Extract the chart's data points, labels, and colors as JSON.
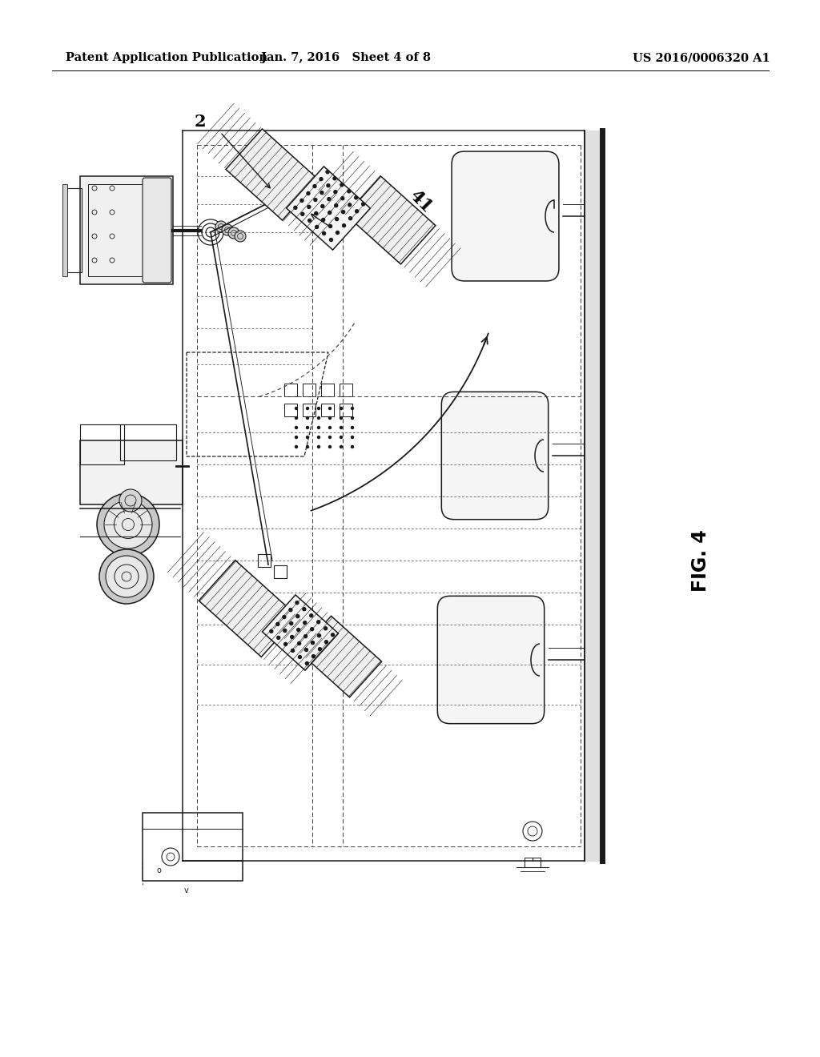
{
  "bg_color": "#ffffff",
  "header_left": "Patent Application Publication",
  "header_center": "Jan. 7, 2016   Sheet 4 of 8",
  "header_right": "US 2016/0006320 A1",
  "fig_label": "FIG. 4",
  "label_2": "2",
  "label_41": "41",
  "header_font_size": 10.5,
  "fig_label_font_size": 17,
  "line_color": "#1a1a1a",
  "dashed_color": "#444444",
  "lw_main": 1.1,
  "lw_thick": 2.2,
  "lw_wall": 5.0
}
